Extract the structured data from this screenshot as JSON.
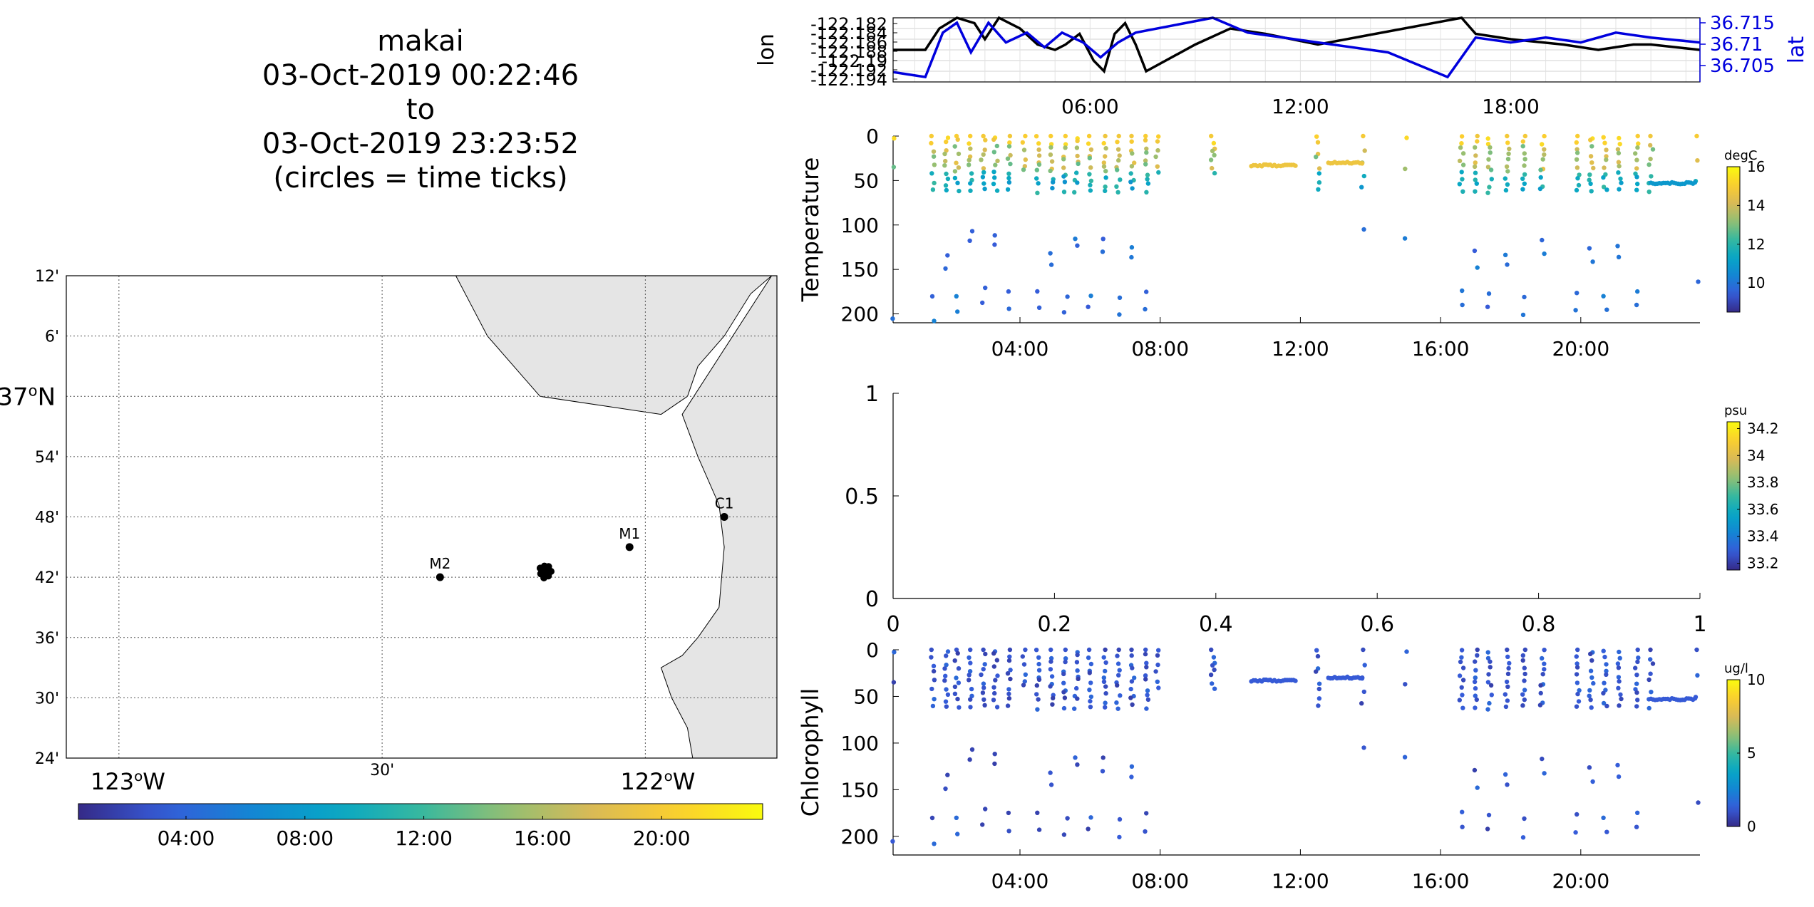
{
  "title_lines": [
    "makai",
    "03-Oct-2019 00:22:46",
    "to",
    "03-Oct-2019 23:23:52",
    "(circles = time ticks)"
  ],
  "chart_data": [
    {
      "id": "map",
      "type": "scatter",
      "lat_ticks": [
        "12'",
        "6'",
        "37°N",
        "54'",
        "48'",
        "42'",
        "36'",
        "30'",
        "24'"
      ],
      "lon_ticks": [
        "123°W",
        "30'",
        "122°W"
      ],
      "lon_range": [
        -123.1,
        -121.75
      ],
      "lat_range": [
        36.4,
        37.2
      ],
      "grid": true,
      "stations": [
        {
          "name": "M2",
          "lon": -122.39,
          "lat": 36.7
        },
        {
          "name": "M1",
          "lon": -122.03,
          "lat": 36.75
        },
        {
          "name": "C1",
          "lon": -121.85,
          "lat": 36.8
        }
      ],
      "track_center": {
        "lon": -122.19,
        "lat": 36.71
      },
      "colorbar_ticks": [
        "04:00",
        "08:00",
        "12:00",
        "16:00",
        "20:00"
      ]
    },
    {
      "id": "position",
      "type": "line",
      "ylabel_left": "lon",
      "ylabel_right": "lat",
      "left_ticks": [
        "-122.182",
        "-122.184",
        "-122.186",
        "-122.188",
        "-122.19",
        "-122.192",
        "-122.194"
      ],
      "right_ticks": [
        "36.715",
        "36.71",
        "36.705"
      ],
      "x_ticks": [
        "06:00",
        "12:00",
        "18:00"
      ],
      "x_range_hours": [
        0.38,
        23.4
      ],
      "lon_range": [
        -122.194,
        -122.182
      ],
      "lat_range": [
        36.703,
        36.716
      ],
      "series": [
        {
          "color": "#000000",
          "x": [
            0.38,
            1.3,
            1.7,
            2.2,
            2.7,
            3.0,
            3.4,
            4.0,
            4.5,
            5.0,
            5.3,
            5.7,
            6.1,
            6.4,
            6.7,
            7.0,
            7.3,
            7.6,
            9.0,
            10.0,
            11.0,
            12.5,
            16.6,
            17.0,
            18.0,
            19.5,
            20.5,
            21.5,
            22.0,
            23.4
          ],
          "y": [
            -122.188,
            -122.188,
            -122.184,
            -122.182,
            -122.183,
            -122.186,
            -122.182,
            -122.184,
            -122.187,
            -122.188,
            -122.187,
            -122.185,
            -122.19,
            -122.192,
            -122.185,
            -122.183,
            -122.187,
            -122.192,
            -122.187,
            -122.184,
            -122.185,
            -122.187,
            -122.182,
            -122.185,
            -122.186,
            -122.187,
            -122.188,
            -122.187,
            -122.187,
            -122.188
          ]
        },
        {
          "color": "#0000dd",
          "x": [
            0.38,
            1.3,
            1.8,
            2.2,
            2.6,
            3.1,
            3.6,
            4.2,
            4.7,
            5.2,
            5.8,
            6.3,
            6.8,
            7.3,
            9.5,
            10.5,
            12.5,
            14.5,
            16.2,
            17.0,
            18.0,
            19.0,
            20.0,
            21.0,
            22.0,
            23.4
          ],
          "y": [
            36.705,
            36.704,
            36.713,
            36.715,
            36.709,
            36.715,
            36.711,
            36.713,
            36.71,
            36.713,
            36.711,
            36.708,
            36.711,
            36.713,
            36.716,
            36.713,
            36.711,
            36.709,
            36.704,
            36.712,
            36.711,
            36.712,
            36.711,
            36.713,
            36.712,
            36.711
          ]
        }
      ]
    },
    {
      "id": "temperature",
      "type": "scatter",
      "ylabel": "Temperature",
      "y_ticks": [
        "0",
        "50",
        "100",
        "150",
        "200"
      ],
      "x_ticks": [
        "04:00",
        "08:00",
        "12:00",
        "16:00",
        "20:00"
      ],
      "ylim": [
        0,
        210
      ],
      "colorbar_label": "degC",
      "colorbar_ticks": [
        "16",
        "14",
        "12",
        "10"
      ],
      "clim": [
        8.5,
        16
      ]
    },
    {
      "id": "salinity",
      "type": "scatter",
      "y_ticks": [
        "1",
        "0.5",
        "0"
      ],
      "x_ticks": [
        "0",
        "0.2",
        "0.4",
        "0.6",
        "0.8",
        "1"
      ],
      "xlim": [
        0,
        1
      ],
      "ylim": [
        0,
        1
      ],
      "colorbar_label": "psu",
      "colorbar_ticks": [
        "34.2",
        "34",
        "33.8",
        "33.6",
        "33.4",
        "33.2"
      ],
      "clim": [
        33.15,
        34.25
      ]
    },
    {
      "id": "chlorophyll",
      "type": "scatter",
      "ylabel": "Chlorophyll",
      "y_ticks": [
        "0",
        "50",
        "100",
        "150",
        "200"
      ],
      "x_ticks": [
        "04:00",
        "08:00",
        "12:00",
        "16:00",
        "20:00"
      ],
      "ylim": [
        0,
        220
      ],
      "colorbar_label": "ug/l",
      "colorbar_ticks": [
        "10",
        "5",
        "0"
      ],
      "clim": [
        0,
        10
      ]
    }
  ],
  "profile_groups": [
    {
      "t": 0.4,
      "n": 3,
      "dmax": 205
    },
    {
      "t": 1.5,
      "n": 10,
      "dmax": 205
    },
    {
      "t": 1.9,
      "n": 12,
      "dmax": 150
    },
    {
      "t": 2.2,
      "n": 12,
      "dmax": 195
    },
    {
      "t": 2.6,
      "n": 12,
      "dmax": 120
    },
    {
      "t": 2.95,
      "n": 12,
      "dmax": 190
    },
    {
      "t": 3.3,
      "n": 12,
      "dmax": 125
    },
    {
      "t": 3.7,
      "n": 12,
      "dmax": 195
    },
    {
      "t": 4.1,
      "n": 6,
      "dmax": 40
    },
    {
      "t": 4.5,
      "n": 12,
      "dmax": 195
    },
    {
      "t": 4.9,
      "n": 12,
      "dmax": 145
    },
    {
      "t": 5.3,
      "n": 12,
      "dmax": 200
    },
    {
      "t": 5.6,
      "n": 12,
      "dmax": 125
    },
    {
      "t": 6.0,
      "n": 12,
      "dmax": 195
    },
    {
      "t": 6.4,
      "n": 12,
      "dmax": 130
    },
    {
      "t": 6.8,
      "n": 12,
      "dmax": 200
    },
    {
      "t": 7.2,
      "n": 12,
      "dmax": 135
    },
    {
      "t": 7.6,
      "n": 12,
      "dmax": 195
    },
    {
      "t": 7.9,
      "n": 6,
      "dmax": 40
    },
    {
      "t": 9.5,
      "n": 8,
      "dmax": 40
    },
    {
      "t": 12.5,
      "n": 8,
      "dmax": 60
    },
    {
      "t": 13.8,
      "n": 6,
      "dmax": 105
    },
    {
      "t": 15.0,
      "n": 3,
      "dmax": 113
    },
    {
      "t": 16.6,
      "n": 12,
      "dmax": 190
    },
    {
      "t": 17.0,
      "n": 12,
      "dmax": 145
    },
    {
      "t": 17.4,
      "n": 12,
      "dmax": 195
    },
    {
      "t": 17.9,
      "n": 12,
      "dmax": 145
    },
    {
      "t": 18.4,
      "n": 12,
      "dmax": 200
    },
    {
      "t": 18.9,
      "n": 12,
      "dmax": 130
    },
    {
      "t": 19.9,
      "n": 12,
      "dmax": 195
    },
    {
      "t": 20.3,
      "n": 12,
      "dmax": 140
    },
    {
      "t": 20.7,
      "n": 12,
      "dmax": 195
    },
    {
      "t": 21.1,
      "n": 12,
      "dmax": 135
    },
    {
      "t": 21.6,
      "n": 12,
      "dmax": 190
    },
    {
      "t": 22.0,
      "n": 8,
      "dmax": 60
    },
    {
      "t": 23.3,
      "n": 4,
      "dmax": 165
    }
  ],
  "level_segments": [
    {
      "t0": 10.6,
      "t1": 11.9,
      "depth": 33
    },
    {
      "t0": 12.8,
      "t1": 13.8,
      "depth": 30
    },
    {
      "t0": 22.0,
      "t1": 23.3,
      "depth": 53
    }
  ],
  "coast": [
    [
      -121.76,
      37.2
    ],
    [
      -121.8,
      37.17
    ],
    [
      -121.85,
      37.1
    ],
    [
      -121.9,
      37.05
    ],
    [
      -121.92,
      37.0
    ],
    [
      -121.97,
      36.97
    ],
    [
      -122.05,
      36.95
    ],
    [
      -122.1,
      36.96
    ],
    [
      -122.2,
      37.0
    ],
    [
      -122.25,
      37.05
    ],
    [
      -122.3,
      37.1
    ],
    [
      -122.33,
      37.15
    ],
    [
      -122.36,
      37.2
    ]
  ]
}
